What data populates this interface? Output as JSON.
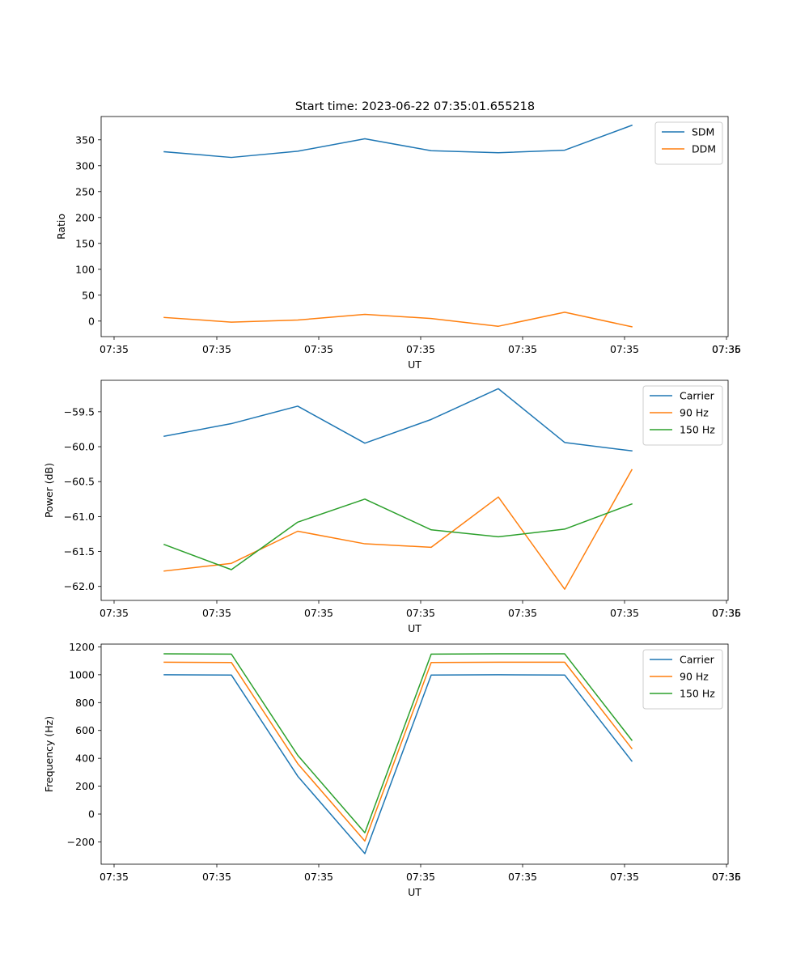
{
  "figure_title": "Start time: 2023-06-22 07:35:01.655218",
  "colors": {
    "blue": "#1f77b4",
    "orange": "#ff7f0e",
    "green": "#2ca02c"
  },
  "chart_data": [
    {
      "type": "line",
      "title": "Start time: 2023-06-22 07:35:01.655218",
      "xlabel": "UT",
      "ylabel": "Ratio",
      "x_tick_labels": [
        "07:35",
        "07:35",
        "07:35",
        "07:35",
        "07:35",
        "07:35",
        "07:35",
        "07:36"
      ],
      "ylim": [
        -30,
        395
      ],
      "yticks": [
        0,
        50,
        100,
        150,
        200,
        250,
        300,
        350
      ],
      "ytick_labels": [
        "0",
        "50",
        "100",
        "150",
        "200",
        "250",
        "300",
        "350"
      ],
      "legend_position": "top-right",
      "grid": false,
      "series": [
        {
          "name": "SDM",
          "color": "#1f77b4",
          "values": [
            327,
            316,
            328,
            352,
            329,
            325,
            330,
            378
          ]
        },
        {
          "name": "DDM",
          "color": "#ff7f0e",
          "values": [
            7,
            -2,
            2,
            13,
            5,
            -10,
            17,
            -11
          ]
        }
      ]
    },
    {
      "type": "line",
      "title": "",
      "xlabel": "UT",
      "ylabel": "Power (dB)",
      "x_tick_labels": [
        "07:35",
        "07:35",
        "07:35",
        "07:35",
        "07:35",
        "07:35",
        "07:35",
        "07:36"
      ],
      "ylim": [
        -62.2,
        -59.05
      ],
      "yticks": [
        -62.0,
        -61.5,
        -61.0,
        -60.5,
        -60.0,
        -59.5
      ],
      "ytick_labels": [
        "−62.0",
        "−61.5",
        "−61.0",
        "−60.5",
        "−60.0",
        "−59.5"
      ],
      "legend_position": "top-right",
      "grid": false,
      "series": [
        {
          "name": "Carrier",
          "color": "#1f77b4",
          "values": [
            -59.85,
            -59.67,
            -59.42,
            -59.95,
            -59.61,
            -59.17,
            -59.94,
            -60.06
          ]
        },
        {
          "name": "90 Hz",
          "color": "#ff7f0e",
          "values": [
            -61.78,
            -61.67,
            -61.21,
            -61.39,
            -61.44,
            -60.72,
            -62.04,
            -60.33
          ]
        },
        {
          "name": "150 Hz",
          "color": "#2ca02c",
          "values": [
            -61.4,
            -61.76,
            -61.08,
            -60.75,
            -61.19,
            -61.29,
            -61.18,
            -60.82
          ]
        }
      ]
    },
    {
      "type": "line",
      "title": "",
      "xlabel": "UT",
      "ylabel": "Frequency (Hz)",
      "x_tick_labels": [
        "07:35",
        "07:35",
        "07:35",
        "07:35",
        "07:35",
        "07:35",
        "07:35",
        "07:36"
      ],
      "ylim": [
        -360,
        1220
      ],
      "yticks": [
        -200,
        0,
        200,
        400,
        600,
        800,
        1000,
        1200
      ],
      "ytick_labels": [
        "−200",
        "0",
        "200",
        "400",
        "600",
        "800",
        "1000",
        "1200"
      ],
      "legend_position": "top-right",
      "grid": false,
      "series": [
        {
          "name": "Carrier",
          "color": "#1f77b4",
          "values": [
            1000,
            998,
            272,
            -284,
            998,
            1000,
            998,
            380
          ]
        },
        {
          "name": "90 Hz",
          "color": "#ff7f0e",
          "values": [
            1090,
            1088,
            362,
            -194,
            1088,
            1090,
            1090,
            470
          ]
        },
        {
          "name": "150 Hz",
          "color": "#2ca02c",
          "values": [
            1150,
            1148,
            422,
            -134,
            1148,
            1150,
            1150,
            530
          ]
        }
      ]
    }
  ]
}
